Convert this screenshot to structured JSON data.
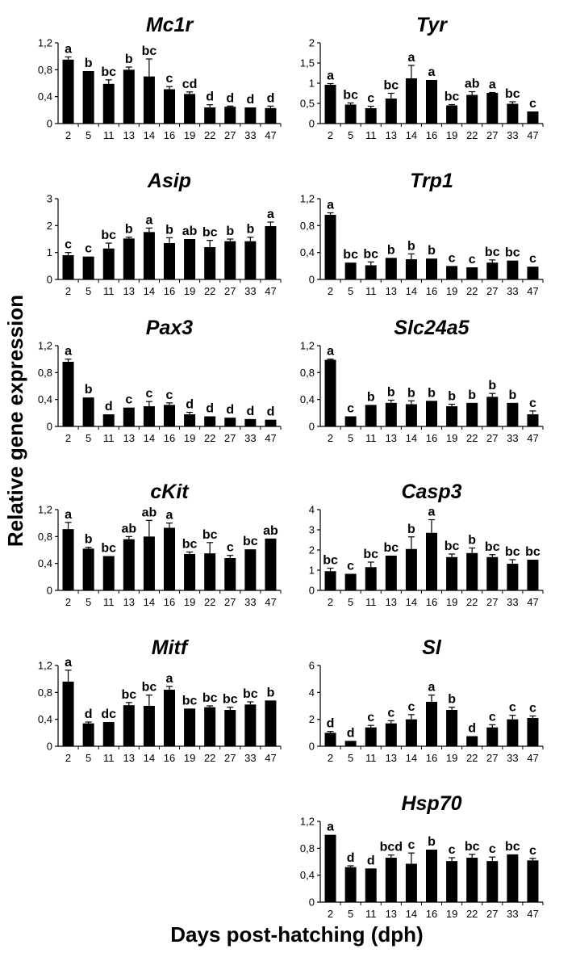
{
  "figure": {
    "ylabel": "Relative gene expression",
    "xlabel": "Days post-hatching (dph)"
  },
  "chart_data": [
    {
      "type": "bar",
      "title": "Mc1r",
      "categories": [
        "2",
        "5",
        "11",
        "13",
        "14",
        "16",
        "19",
        "22",
        "27",
        "33",
        "47"
      ],
      "values": [
        0.95,
        0.78,
        0.59,
        0.8,
        0.7,
        0.51,
        0.44,
        0.24,
        0.25,
        0.24,
        0.23
      ],
      "errors": [
        0.04,
        0.0,
        0.06,
        0.04,
        0.26,
        0.04,
        0.03,
        0.04,
        0.01,
        0.0,
        0.03
      ],
      "letters": [
        "a",
        "b",
        "bc",
        "b",
        "bc",
        "c",
        "cd",
        "d",
        "d",
        "d",
        "d"
      ],
      "ylim": [
        0,
        1.2
      ],
      "yticks": [
        "0",
        "0,4",
        "0,8",
        "1,2"
      ]
    },
    {
      "type": "bar",
      "title": "Tyr",
      "categories": [
        "2",
        "5",
        "11",
        "13",
        "14",
        "16",
        "19",
        "22",
        "27",
        "33",
        "47"
      ],
      "values": [
        0.96,
        0.47,
        0.38,
        0.62,
        1.12,
        1.08,
        0.45,
        0.71,
        0.76,
        0.49,
        0.3
      ],
      "errors": [
        0.03,
        0.04,
        0.05,
        0.13,
        0.32,
        0.0,
        0.02,
        0.08,
        0.01,
        0.05,
        0.0
      ],
      "letters": [
        "a",
        "bc",
        "c",
        "bc",
        "a",
        "a",
        "bc",
        "ab",
        "a",
        "bc",
        "c"
      ],
      "ylim": [
        0,
        2
      ],
      "yticks": [
        "0",
        "0,5",
        "1",
        "1,5",
        "2"
      ]
    },
    {
      "type": "bar",
      "title": "Asip",
      "categories": [
        "2",
        "5",
        "11",
        "13",
        "14",
        "16",
        "19",
        "22",
        "27",
        "33",
        "47"
      ],
      "values": [
        0.9,
        0.85,
        1.15,
        1.52,
        1.76,
        1.35,
        1.5,
        1.2,
        1.42,
        1.42,
        1.98
      ],
      "errors": [
        0.1,
        0.0,
        0.2,
        0.05,
        0.15,
        0.2,
        0.0,
        0.25,
        0.08,
        0.15,
        0.15
      ],
      "letters": [
        "c",
        "c",
        "bc",
        "b",
        "a",
        "b",
        "ab",
        "bc",
        "b",
        "b",
        "a"
      ],
      "ylim": [
        0,
        3
      ],
      "yticks": [
        "0",
        "1",
        "2",
        "3"
      ]
    },
    {
      "type": "bar",
      "title": "Trp1",
      "categories": [
        "2",
        "5",
        "11",
        "13",
        "14",
        "16",
        "19",
        "22",
        "27",
        "33",
        "47"
      ],
      "values": [
        0.96,
        0.25,
        0.21,
        0.32,
        0.3,
        0.31,
        0.2,
        0.18,
        0.25,
        0.28,
        0.19
      ],
      "errors": [
        0.03,
        0.0,
        0.05,
        0.0,
        0.08,
        0.0,
        0.0,
        0.0,
        0.04,
        0.0,
        0.0
      ],
      "letters": [
        "a",
        "bc",
        "bc",
        "b",
        "b",
        "b",
        "c",
        "c",
        "bc",
        "bc",
        "c"
      ],
      "ylim": [
        0,
        1.2
      ],
      "yticks": [
        "0",
        "0,4",
        "0,8",
        "1,2"
      ]
    },
    {
      "type": "bar",
      "title": "Pax3",
      "categories": [
        "2",
        "5",
        "11",
        "13",
        "14",
        "16",
        "19",
        "22",
        "27",
        "33",
        "47"
      ],
      "values": [
        0.96,
        0.43,
        0.18,
        0.28,
        0.3,
        0.32,
        0.18,
        0.15,
        0.13,
        0.11,
        0.1
      ],
      "errors": [
        0.04,
        0.0,
        0.0,
        0.0,
        0.07,
        0.03,
        0.03,
        0.0,
        0.0,
        0.0,
        0.0
      ],
      "letters": [
        "a",
        "b",
        "d",
        "c",
        "c",
        "c",
        "d",
        "d",
        "d",
        "d",
        "d"
      ],
      "ylim": [
        0,
        1.2
      ],
      "yticks": [
        "0",
        "0,4",
        "0,8",
        "1,2"
      ]
    },
    {
      "type": "bar",
      "title": "Slc24a5",
      "categories": [
        "2",
        "5",
        "11",
        "13",
        "14",
        "16",
        "19",
        "22",
        "27",
        "33",
        "47"
      ],
      "values": [
        0.99,
        0.15,
        0.32,
        0.35,
        0.33,
        0.38,
        0.3,
        0.35,
        0.44,
        0.35,
        0.18
      ],
      "errors": [
        0.01,
        0.0,
        0.0,
        0.04,
        0.05,
        0.0,
        0.03,
        0.0,
        0.05,
        0.0,
        0.05
      ],
      "letters": [
        "a",
        "c",
        "b",
        "b",
        "b",
        "b",
        "b",
        "b",
        "b",
        "b",
        "c"
      ],
      "ylim": [
        0,
        1.2
      ],
      "yticks": [
        "0",
        "0,4",
        "0,8",
        "1,2"
      ]
    },
    {
      "type": "bar",
      "title": "cKit",
      "categories": [
        "2",
        "5",
        "11",
        "13",
        "14",
        "16",
        "19",
        "22",
        "27",
        "33",
        "47"
      ],
      "values": [
        0.91,
        0.62,
        0.51,
        0.76,
        0.8,
        0.93,
        0.54,
        0.55,
        0.48,
        0.61,
        0.77
      ],
      "errors": [
        0.1,
        0.02,
        0.0,
        0.04,
        0.24,
        0.07,
        0.03,
        0.16,
        0.04,
        0.0,
        0.0
      ],
      "letters": [
        "a",
        "b",
        "bc",
        "ab",
        "ab",
        "a",
        "bc",
        "bc",
        "c",
        "bc",
        "ab"
      ],
      "ylim": [
        0,
        1.2
      ],
      "yticks": [
        "0",
        "0,4",
        "0,8",
        "1,2"
      ]
    },
    {
      "type": "bar",
      "title": "Casp3",
      "categories": [
        "2",
        "5",
        "11",
        "13",
        "14",
        "16",
        "19",
        "22",
        "27",
        "33",
        "47"
      ],
      "values": [
        0.95,
        0.82,
        1.15,
        1.72,
        2.05,
        2.85,
        1.65,
        1.85,
        1.65,
        1.32,
        1.52
      ],
      "errors": [
        0.15,
        0.0,
        0.25,
        0.0,
        0.6,
        0.65,
        0.15,
        0.25,
        0.12,
        0.2,
        0.0
      ],
      "letters": [
        "bc",
        "c",
        "bc",
        "bc",
        "b",
        "a",
        "bc",
        "b",
        "bc",
        "bc",
        "bc"
      ],
      "ylim": [
        0,
        4
      ],
      "yticks": [
        "0",
        "1",
        "2",
        "3",
        "4"
      ]
    },
    {
      "type": "bar",
      "title": "Mitf",
      "categories": [
        "2",
        "5",
        "11",
        "13",
        "14",
        "16",
        "19",
        "22",
        "27",
        "33",
        "47"
      ],
      "values": [
        0.96,
        0.34,
        0.36,
        0.61,
        0.6,
        0.84,
        0.56,
        0.58,
        0.54,
        0.62,
        0.68
      ],
      "errors": [
        0.17,
        0.02,
        0.0,
        0.04,
        0.16,
        0.05,
        0.0,
        0.02,
        0.04,
        0.04,
        0.0
      ],
      "letters": [
        "a",
        "d",
        "dc",
        "bc",
        "bc",
        "a",
        "bc",
        "bc",
        "bc",
        "bc",
        "b"
      ],
      "ylim": [
        0,
        1.2
      ],
      "yticks": [
        "0",
        "0,4",
        "0,8",
        "1,2"
      ]
    },
    {
      "type": "bar",
      "title": "Sl",
      "categories": [
        "2",
        "5",
        "11",
        "13",
        "14",
        "16",
        "19",
        "22",
        "27",
        "33",
        "47"
      ],
      "values": [
        1.0,
        0.4,
        1.4,
        1.7,
        2.0,
        3.3,
        2.7,
        0.75,
        1.4,
        2.0,
        2.1
      ],
      "errors": [
        0.1,
        0.0,
        0.15,
        0.2,
        0.35,
        0.5,
        0.2,
        0.0,
        0.2,
        0.3,
        0.15
      ],
      "letters": [
        "d",
        "d",
        "c",
        "c",
        "c",
        "a",
        "b",
        "d",
        "c",
        "c",
        "c"
      ],
      "ylim": [
        0,
        6
      ],
      "yticks": [
        "0",
        "2",
        "4",
        "6"
      ]
    },
    {
      "type": "bar",
      "title": "Hsp70",
      "categories": [
        "2",
        "5",
        "11",
        "13",
        "14",
        "16",
        "19",
        "22",
        "27",
        "33",
        "47"
      ],
      "values": [
        1.0,
        0.52,
        0.5,
        0.66,
        0.57,
        0.78,
        0.61,
        0.66,
        0.61,
        0.71,
        0.62
      ],
      "errors": [
        0.0,
        0.02,
        0.0,
        0.04,
        0.16,
        0.0,
        0.05,
        0.05,
        0.06,
        0.0,
        0.03
      ],
      "letters": [
        "a",
        "d",
        "d",
        "bcd",
        "c",
        "b",
        "c",
        "bc",
        "c",
        "bc",
        "c"
      ],
      "ylim": [
        0,
        1.2
      ],
      "yticks": [
        "0",
        "0,4",
        "0,8",
        "1,2"
      ]
    }
  ]
}
